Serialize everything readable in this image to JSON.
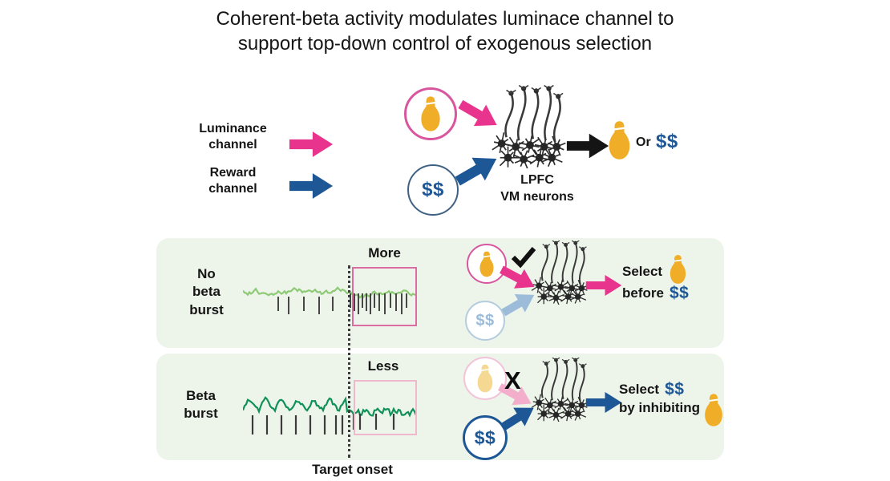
{
  "title": {
    "line1": "Coherent-beta activity modulates luminace channel to",
    "line2": "support top-down control of exogenous selection"
  },
  "channels": {
    "luminance_line1": "Luminance",
    "luminance_line2": "channel",
    "reward_line1": "Reward",
    "reward_line2": "channel"
  },
  "hub": {
    "reward_symbol": "$$",
    "region_line1": "LPFC",
    "region_line2": "VM neurons",
    "or_label": "Or",
    "outcome_reward": "$$"
  },
  "panel_no_beta": {
    "label_line1": "No",
    "label_line2": "beta",
    "label_line3": "burst",
    "annotation": "More",
    "reward_symbol": "$$",
    "outcome_line1": "Select",
    "outcome_line2": "before",
    "outcome_reward": "$$"
  },
  "panel_beta": {
    "label_line1": "Beta",
    "label_line2": "burst",
    "annotation": "Less",
    "x_mark": "X",
    "reward_symbol": "$$",
    "outcome_line1": "Select",
    "outcome_reward": "$$",
    "outcome_line2": "by inhibiting"
  },
  "timeline": {
    "target_onset": "Target onset"
  },
  "colors": {
    "luminance_pink": "#E9348E",
    "reward_blue": "#1E5795",
    "faded_pink": "#F3AECB",
    "faded_blue": "#9CBCD9",
    "bulb_gold": "#F0AE28",
    "bulb_gold_faded": "#F5D892",
    "panel_green": "#EDF5EB",
    "trace_light_green": "#8EC976",
    "trace_dark_green": "#109158",
    "highlight_box_pink": "#DC6CA4",
    "arrow_black": "#141414"
  }
}
